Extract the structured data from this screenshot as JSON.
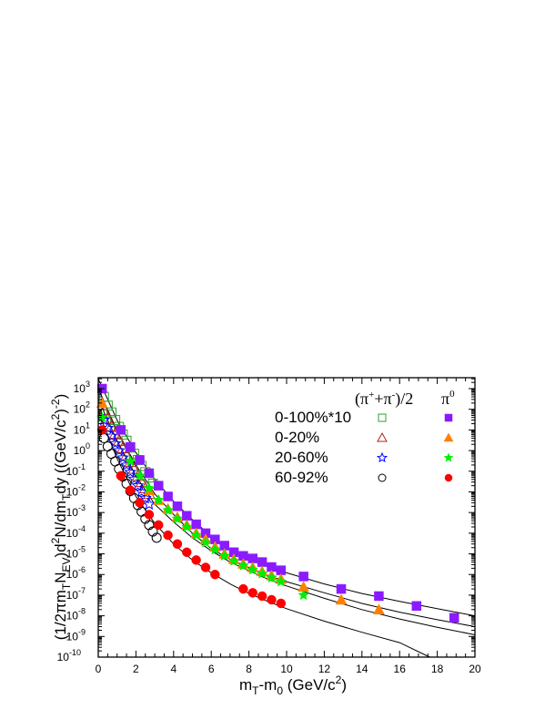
{
  "chart_data": {
    "type": "scatter",
    "title": "",
    "xlabel": "m_T-m_0 (GeV/c^2)",
    "ylabel": "(1/2πm_T N_EV)d^2N/dm_T dy ((GeV/c^2)^-2)",
    "xlim": [
      0,
      20
    ],
    "ylim": [
      1e-10,
      1000.0
    ],
    "yscale": "log",
    "grid": false,
    "legend_position": "upper right (inside)",
    "x_ticks": [
      0,
      2,
      4,
      6,
      8,
      10,
      12,
      14,
      16,
      18,
      20
    ],
    "y_ticks": [
      "10^3",
      "10^2",
      "10^1",
      "10^0",
      "10^-1",
      "10^-2",
      "10^-3",
      "10^-4",
      "10^-5",
      "10^-6",
      "10^-7",
      "10^-8",
      "10^-9",
      "10^-10"
    ],
    "legend": {
      "column_headers": [
        "(π⁺+π⁻)/2",
        "π⁰"
      ],
      "rows": [
        "0-100%*10",
        "0-20%",
        "20-60%",
        "60-92%"
      ]
    },
    "series": [
      {
        "name": "0-100%*10 π⁰",
        "marker": "filled-square",
        "color": "#8b1aff",
        "x": [
          0.2,
          1.2,
          1.7,
          2.2,
          2.7,
          3.2,
          3.7,
          4.2,
          4.7,
          5.2,
          5.7,
          6.2,
          6.7,
          7.2,
          7.7,
          8.2,
          8.7,
          9.2,
          9.7,
          10.9,
          12.9,
          14.9,
          16.9,
          18.9
        ],
        "y": [
          1000,
          10,
          1.5,
          0.35,
          0.08,
          0.02,
          0.006,
          0.002,
          0.0007,
          0.00027,
          0.0001,
          5e-05,
          2.5e-05,
          1.2e-05,
          8e-06,
          6e-06,
          4e-06,
          2.3e-06,
          1.6e-06,
          8e-07,
          2e-07,
          9e-08,
          3e-08,
          8e-09
        ]
      },
      {
        "name": "0-20% π⁰",
        "marker": "filled-triangle",
        "color": "#ff8000",
        "x": [
          0.2,
          2.7,
          3.2,
          3.7,
          4.2,
          4.7,
          5.2,
          5.7,
          6.2,
          6.7,
          7.2,
          7.7,
          8.2,
          8.7,
          9.2,
          9.7,
          10.9,
          12.9,
          14.9
        ],
        "y": [
          200,
          0.012,
          0.004,
          0.0015,
          0.0006,
          0.00025,
          0.0001,
          5e-05,
          2.2e-05,
          1e-05,
          5.5e-06,
          3.3e-06,
          2.2e-06,
          1.4e-06,
          9e-07,
          6e-07,
          2.5e-07,
          6e-08,
          2e-08
        ]
      },
      {
        "name": "20-60% π⁰",
        "marker": "filled-star",
        "color": "#00ee00",
        "x": [
          0.2,
          1.7,
          2.2,
          2.7,
          3.2,
          3.7,
          4.2,
          4.7,
          5.2,
          5.7,
          6.2,
          6.7,
          7.2,
          7.7,
          8.2,
          8.7,
          9.2,
          9.7,
          10.9
        ],
        "y": [
          40,
          0.3,
          0.06,
          0.015,
          0.004,
          0.0013,
          0.0005,
          0.0002,
          8e-05,
          3.5e-05,
          1.6e-05,
          8e-06,
          4.5e-06,
          2.7e-06,
          1.7e-06,
          1.1e-06,
          7e-07,
          4.5e-07,
          1e-07
        ]
      },
      {
        "name": "60-92% π⁰",
        "marker": "filled-circle",
        "color": "#ff0000",
        "x": [
          0.2,
          1.2,
          1.7,
          2.2,
          2.7,
          3.2,
          3.7,
          4.2,
          4.7,
          5.2,
          5.7,
          6.2,
          7.7,
          8.2,
          8.7,
          9.2,
          9.7
        ],
        "y": [
          10,
          0.06,
          0.012,
          0.003,
          0.0008,
          0.00025,
          8e-05,
          3e-05,
          1.2e-05,
          5e-06,
          2.2e-06,
          1e-06,
          2e-07,
          1.3e-07,
          9e-08,
          6e-08,
          4e-08
        ]
      },
      {
        "name": "0-100%*10 (π⁺+π⁻)/2",
        "marker": "open-square",
        "color": "#2ca02c",
        "x": [
          0.3,
          0.5,
          0.7,
          0.9,
          1.1,
          1.3,
          1.5,
          1.7,
          1.9,
          2.1,
          2.3,
          2.5,
          2.7,
          2.9
        ],
        "y": [
          400,
          150,
          70,
          30,
          14,
          6,
          3,
          1.4,
          0.7,
          0.35,
          0.18,
          0.09,
          0.05,
          0.025
        ]
      },
      {
        "name": "0-20% (π⁺+π⁻)/2",
        "marker": "open-triangle",
        "color": "#b22222",
        "x": [
          0.3,
          0.5,
          0.7,
          0.9,
          1.1,
          1.3,
          1.5,
          1.7,
          1.9,
          2.1,
          2.3,
          2.5,
          2.7
        ],
        "y": [
          90,
          35,
          15,
          6.5,
          3,
          1.3,
          0.6,
          0.28,
          0.13,
          0.06,
          0.03,
          0.015,
          0.008
        ]
      },
      {
        "name": "20-60% (π⁺+π⁻)/2",
        "marker": "open-star",
        "color": "#0000ff",
        "x": [
          0.3,
          0.5,
          0.7,
          0.9,
          1.1,
          1.3,
          1.5,
          1.7,
          1.9,
          2.1,
          2.3,
          2.5,
          2.7
        ],
        "y": [
          30,
          12,
          5,
          2.2,
          1,
          0.45,
          0.2,
          0.09,
          0.042,
          0.02,
          0.01,
          0.005,
          0.0025
        ]
      },
      {
        "name": "60-92% (π⁺+π⁻)/2",
        "marker": "open-circle",
        "color": "#000000",
        "x": [
          0.3,
          0.5,
          0.7,
          0.9,
          1.1,
          1.3,
          1.5,
          1.7,
          1.9,
          2.1,
          2.3,
          2.5,
          2.7,
          2.9,
          3.1
        ],
        "y": [
          4,
          1.6,
          0.7,
          0.3,
          0.13,
          0.055,
          0.025,
          0.011,
          0.005,
          0.0023,
          0.0011,
          0.0005,
          0.00025,
          0.00012,
          6e-05
        ]
      }
    ],
    "fit_curves": [
      {
        "name": "fit 0-100%*10",
        "color": "#000000"
      },
      {
        "name": "fit 0-20%",
        "color": "#000000"
      },
      {
        "name": "fit 20-60%",
        "color": "#000000"
      },
      {
        "name": "fit 60-92%",
        "color": "#000000"
      }
    ]
  }
}
